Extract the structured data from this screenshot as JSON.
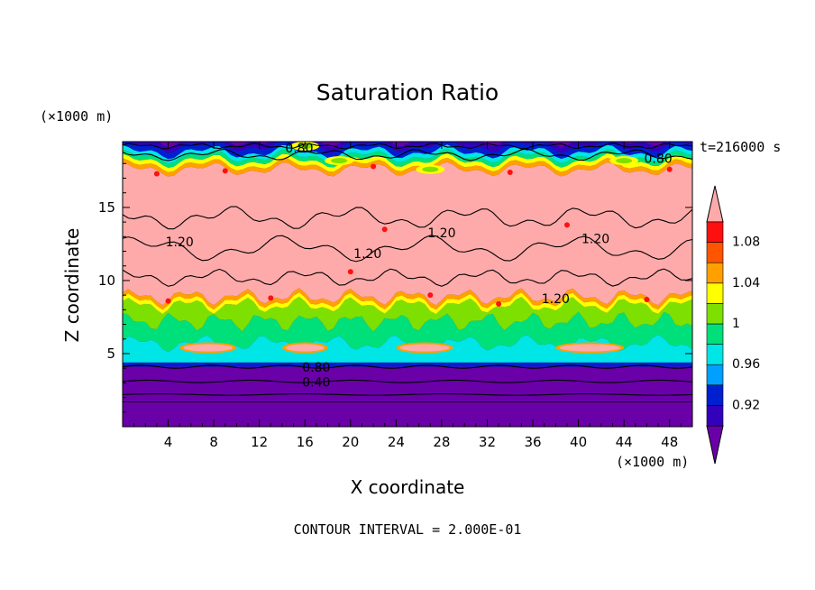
{
  "chart_data": {
    "type": "heatmap",
    "title": "Saturation Ratio",
    "xlabel": "X coordinate",
    "ylabel": "Z coordinate",
    "x_unit": "(×1000 m)",
    "y_unit": "(×1000 m)",
    "time_label": "t=216000 s",
    "footer": "CONTOUR INTERVAL = 2.000E-01",
    "xlim": [
      0,
      50
    ],
    "ylim": [
      0,
      19.5
    ],
    "x_ticks": [
      4,
      8,
      12,
      16,
      20,
      24,
      28,
      32,
      36,
      40,
      44,
      48
    ],
    "y_ticks": [
      5,
      10,
      15
    ],
    "colorbar": {
      "levels": [
        0.92,
        0.94,
        0.96,
        0.98,
        1.0,
        1.02,
        1.04,
        1.06,
        1.08,
        1.1
      ],
      "labels": [
        "0.92",
        "0.96",
        "1",
        "1.04",
        "1.08"
      ],
      "colors": [
        "#6a00a8",
        "#3300bb",
        "#0020d0",
        "#00a0ff",
        "#00e5e5",
        "#00e07a",
        "#7ee000",
        "#ffff00",
        "#ffa000",
        "#ff5500",
        "#ff1010",
        "#ffaaaa"
      ]
    },
    "contour_labels": [
      {
        "text": "0.80",
        "x": 15.5,
        "y": 19.0
      },
      {
        "text": "0.80",
        "x": 47.0,
        "y": 18.3
      },
      {
        "text": "1.20",
        "x": 5.0,
        "y": 12.6
      },
      {
        "text": "1.20",
        "x": 21.5,
        "y": 11.8
      },
      {
        "text": "1.20",
        "x": 28.0,
        "y": 13.2
      },
      {
        "text": "1.20",
        "x": 41.5,
        "y": 12.8
      },
      {
        "text": "1.20",
        "x": 38.0,
        "y": 8.7
      },
      {
        "text": "0.80",
        "x": 17.0,
        "y": 4.0
      },
      {
        "text": "0.40",
        "x": 17.0,
        "y": 3.0
      }
    ]
  }
}
